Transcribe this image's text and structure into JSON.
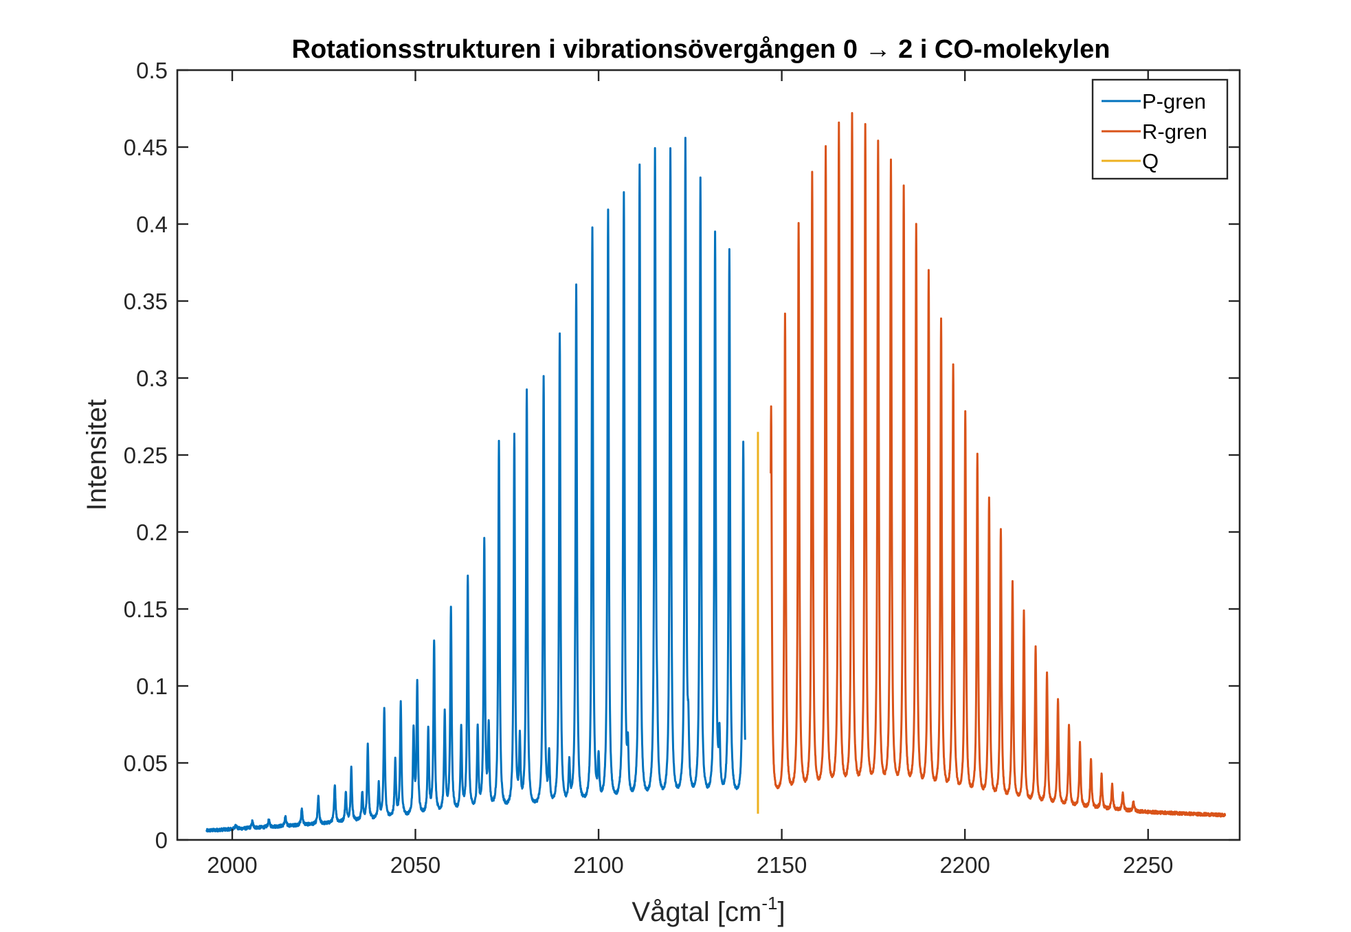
{
  "chart_data": {
    "type": "line",
    "title": "Rotationsstrukturen i vibrationsövergången 0 → 2 i CO-molekylen",
    "xlabel": "Vågtal [cm",
    "xlabel_sup": "-1",
    "xlabel_end": "]",
    "ylabel": "Intensitet",
    "xlim": [
      1985,
      2275
    ],
    "ylim": [
      0,
      0.5
    ],
    "xticks": [
      2000,
      2050,
      2100,
      2150,
      2200,
      2250
    ],
    "xtick_labels": [
      "2000",
      "2050",
      "2100",
      "2150",
      "2200",
      "2250"
    ],
    "yticks": [
      0,
      0.05,
      0.1,
      0.15,
      0.2,
      0.25,
      0.3,
      0.35,
      0.4,
      0.45,
      0.5
    ],
    "ytick_labels": [
      "0",
      "0.05",
      "0.1",
      "0.15",
      "0.2",
      "0.25",
      "0.3",
      "0.35",
      "0.4",
      "0.45",
      "0.5"
    ],
    "grid": false,
    "legend_position": "top-right",
    "series": [
      {
        "name": "P-gren",
        "color": "#0072BD",
        "x_range": [
          1993,
          2140
        ],
        "baseline": [
          [
            1993,
            0.006
          ],
          [
            2030,
            0.011
          ],
          [
            2060,
            0.016
          ],
          [
            2100,
            0.02
          ],
          [
            2140,
            0.025
          ]
        ],
        "peaks": [
          [
            2139.5,
            0.256
          ],
          [
            2135.7,
            0.381
          ],
          [
            2131.8,
            0.39
          ],
          [
            2127.8,
            0.426
          ],
          [
            2123.7,
            0.45
          ],
          [
            2119.6,
            0.445
          ],
          [
            2115.4,
            0.442
          ],
          [
            2111.2,
            0.436
          ],
          [
            2106.9,
            0.416
          ],
          [
            2102.6,
            0.406
          ],
          [
            2098.3,
            0.394
          ],
          [
            2093.9,
            0.357
          ],
          [
            2089.4,
            0.327
          ],
          [
            2085.0,
            0.298
          ],
          [
            2080.4,
            0.289
          ],
          [
            2077.0,
            0.26
          ],
          [
            2072.8,
            0.256
          ],
          [
            2068.8,
            0.192
          ],
          [
            2064.3,
            0.17
          ],
          [
            2059.7,
            0.149
          ],
          [
            2055.1,
            0.128
          ],
          [
            2050.5,
            0.101
          ],
          [
            2046.0,
            0.088
          ],
          [
            2041.5,
            0.085
          ],
          [
            2037.0,
            0.061
          ],
          [
            2032.5,
            0.046
          ],
          [
            2028.0,
            0.036
          ],
          [
            2023.5,
            0.028
          ],
          [
            2019.0,
            0.02
          ],
          [
            2014.5,
            0.015
          ],
          [
            2010.0,
            0.013
          ],
          [
            2005.5,
            0.012
          ],
          [
            2001.0,
            0.01
          ],
          [
            2133.0,
            0.06
          ],
          [
            2124.5,
            0.055
          ],
          [
            2116.0,
            0.05
          ],
          [
            2108.0,
            0.05
          ],
          [
            2100.0,
            0.048
          ],
          [
            2092.0,
            0.045
          ],
          [
            2086.5,
            0.05
          ],
          [
            2078.5,
            0.06
          ],
          [
            2070.0,
            0.07
          ],
          [
            2067.0,
            0.07
          ],
          [
            2062.5,
            0.07
          ],
          [
            2058.0,
            0.08
          ],
          [
            2053.5,
            0.07
          ],
          [
            2049.5,
            0.07
          ],
          [
            2044.5,
            0.05
          ],
          [
            2040.0,
            0.035
          ],
          [
            2035.5,
            0.03
          ],
          [
            2031.0,
            0.03
          ]
        ]
      },
      {
        "name": "R-gren",
        "color": "#D95319",
        "x_range": [
          2147,
          2271
        ],
        "baseline": [
          [
            2147,
            0.025
          ],
          [
            2180,
            0.028
          ],
          [
            2220,
            0.022
          ],
          [
            2250,
            0.018
          ],
          [
            2271,
            0.016
          ]
        ],
        "peaks": [
          [
            2147.1,
            0.28
          ],
          [
            2150.9,
            0.338
          ],
          [
            2154.6,
            0.397
          ],
          [
            2158.3,
            0.429
          ],
          [
            2162.0,
            0.446
          ],
          [
            2165.6,
            0.462
          ],
          [
            2169.2,
            0.467
          ],
          [
            2172.8,
            0.46
          ],
          [
            2176.3,
            0.45
          ],
          [
            2179.8,
            0.438
          ],
          [
            2183.3,
            0.42
          ],
          [
            2186.7,
            0.395
          ],
          [
            2190.1,
            0.366
          ],
          [
            2193.5,
            0.335
          ],
          [
            2196.8,
            0.305
          ],
          [
            2200.1,
            0.275
          ],
          [
            2203.4,
            0.247
          ],
          [
            2206.6,
            0.22
          ],
          [
            2209.8,
            0.2
          ],
          [
            2213.0,
            0.166
          ],
          [
            2216.1,
            0.147
          ],
          [
            2219.3,
            0.124
          ],
          [
            2222.4,
            0.107
          ],
          [
            2225.4,
            0.09
          ],
          [
            2228.4,
            0.073
          ],
          [
            2231.4,
            0.062
          ],
          [
            2234.4,
            0.052
          ],
          [
            2237.3,
            0.042
          ],
          [
            2240.2,
            0.036
          ],
          [
            2243.1,
            0.03
          ],
          [
            2246.0,
            0.025
          ]
        ]
      },
      {
        "name": "Q",
        "color": "#EDB120",
        "x": [
          2143.5,
          2143.5
        ],
        "y": [
          0.017,
          0.265
        ]
      }
    ]
  }
}
